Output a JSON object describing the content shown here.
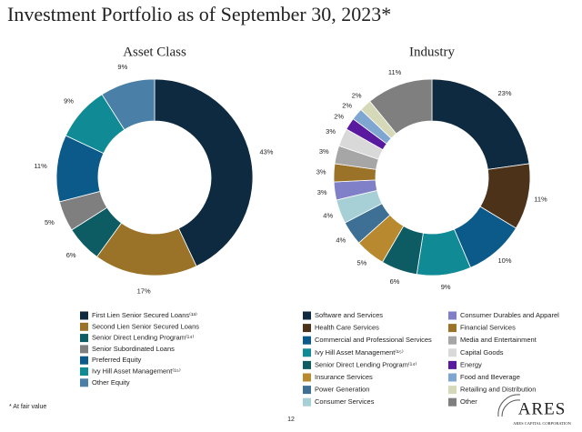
{
  "title": "Investment Portfolio as of September 30, 2023*",
  "footnote": "* At fair value",
  "page_number": "12",
  "logo": {
    "name": "ARES",
    "tagline": "ARES CAPITAL CORPORATION"
  },
  "chart_data": [
    {
      "type": "donut",
      "title": "Asset Class",
      "categories": [
        "First Lien Senior Secured Loans⁽¹³⁾",
        "Second Lien Senior Secured Loans",
        "Senior Direct Lending Program⁽¹⁴⁾",
        "Senior Subordinated Loans",
        "Preferred Equity",
        "Ivy Hill Asset Management⁽¹⁵⁾",
        "Other Equity"
      ],
      "values": [
        43,
        17,
        6,
        5,
        11,
        9,
        9
      ],
      "value_labels": [
        "43%",
        "17%",
        "6%",
        "5%",
        "11%",
        "9%",
        "9%"
      ],
      "colors": [
        "#0d2a40",
        "#9a7328",
        "#0d5c63",
        "#7f7f7f",
        "#0b5a8a",
        "#108b96",
        "#4a7fa8"
      ]
    },
    {
      "type": "donut",
      "title": "Industry",
      "categories": [
        "Software and Services",
        "Health Care Services",
        "Commercial and Professional Services",
        "Ivy Hill Asset Management⁽¹⁵⁾",
        "Senior Direct Lending Program⁽¹⁴⁾",
        "Insurance Services",
        "Power Generation",
        "Consumer Services",
        "Consumer Durables and Apparel",
        "Financial Services",
        "Media and Entertainment",
        "Capital Goods",
        "Energy",
        "Food and Beverage",
        "Retailing and Distribution",
        "Other"
      ],
      "values": [
        23,
        11,
        10,
        9,
        6,
        5,
        4,
        4,
        3,
        3,
        3,
        3,
        2,
        2,
        2,
        11
      ],
      "value_labels": [
        "23%",
        "11%",
        "10%",
        "9%",
        "6%",
        "5%",
        "4%",
        "4%",
        "3%",
        "3%",
        "3%",
        "3%",
        "2%",
        "2%",
        "2%",
        "11%"
      ],
      "colors": [
        "#0d2a40",
        "#4b3219",
        "#0b5a8a",
        "#108b96",
        "#0d5c63",
        "#b8892e",
        "#3e6f94",
        "#a6d0d6",
        "#8080c8",
        "#9a7328",
        "#a6a6a6",
        "#d9d9d9",
        "#5a1aa0",
        "#7fa6d1",
        "#d5d9b8",
        "#7f7f7f"
      ]
    }
  ]
}
